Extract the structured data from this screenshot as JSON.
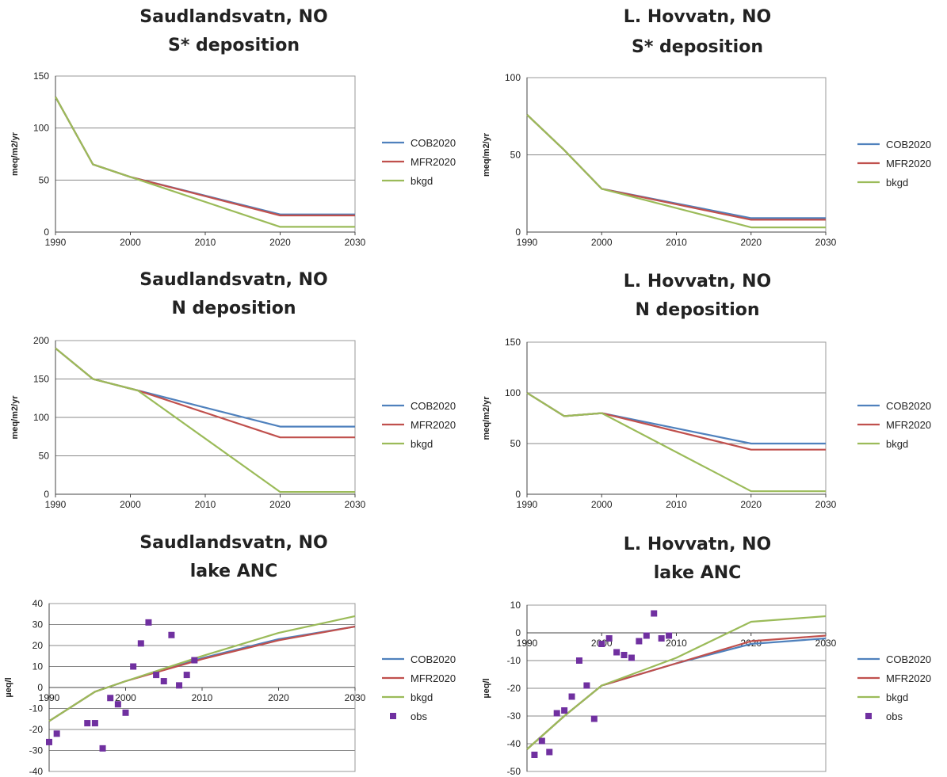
{
  "colors": {
    "COB2020": "#4f81bd",
    "MFR2020": "#c0504d",
    "bkgd": "#9bbb59",
    "obs": "#7030a0"
  },
  "chart_data": [
    {
      "type": "line",
      "title": "Saudlandsvatn, NO",
      "subtitle": "S* deposition",
      "xlabel": "",
      "ylabel": "meq/m2/yr",
      "xlim": [
        1990,
        2030
      ],
      "ylim": [
        0,
        150
      ],
      "xticks": [
        1990,
        2000,
        2010,
        2020,
        2030
      ],
      "yticks": [
        0,
        50,
        100,
        150
      ],
      "x_axis_at": 0,
      "legend": "right",
      "series": [
        {
          "name": "COB2020",
          "x": [
            1990,
            1995,
            2000,
            2020,
            2030
          ],
          "y": [
            130,
            65,
            53,
            17,
            17
          ]
        },
        {
          "name": "MFR2020",
          "x": [
            1990,
            1995,
            2000,
            2020,
            2030
          ],
          "y": [
            130,
            65,
            53,
            16,
            16
          ]
        },
        {
          "name": "bkgd",
          "x": [
            1990,
            1995,
            2000,
            2020,
            2030
          ],
          "y": [
            130,
            65,
            53,
            5,
            5
          ]
        }
      ]
    },
    {
      "type": "line",
      "title": "L. Hovvatn, NO",
      "subtitle": "S* deposition",
      "xlabel": "",
      "ylabel": "meq/m2/yr",
      "xlim": [
        1990,
        2030
      ],
      "ylim": [
        0,
        100
      ],
      "xticks": [
        1990,
        2000,
        2010,
        2020,
        2030
      ],
      "yticks": [
        0,
        50,
        100
      ],
      "x_axis_at": 0,
      "legend": "right",
      "series": [
        {
          "name": "COB2020",
          "x": [
            1990,
            1995,
            2000,
            2020,
            2030
          ],
          "y": [
            76,
            53,
            28,
            9,
            9
          ]
        },
        {
          "name": "MFR2020",
          "x": [
            1990,
            1995,
            2000,
            2020,
            2030
          ],
          "y": [
            76,
            53,
            28,
            8,
            8
          ]
        },
        {
          "name": "bkgd",
          "x": [
            1990,
            1995,
            2000,
            2020,
            2030
          ],
          "y": [
            76,
            53,
            28,
            3,
            3
          ]
        }
      ]
    },
    {
      "type": "line",
      "title": "Saudlandsvatn, NO",
      "subtitle": "N deposition",
      "xlabel": "",
      "ylabel": "meq/m2/yr",
      "xlim": [
        1990,
        2030
      ],
      "ylim": [
        0,
        200
      ],
      "xticks": [
        1990,
        2000,
        2010,
        2020,
        2030
      ],
      "yticks": [
        0,
        50,
        100,
        150,
        200
      ],
      "x_axis_at": 0,
      "legend": "right",
      "series": [
        {
          "name": "COB2020",
          "x": [
            1990,
            1995,
            2001,
            2020,
            2030
          ],
          "y": [
            190,
            150,
            135,
            88,
            88
          ]
        },
        {
          "name": "MFR2020",
          "x": [
            1990,
            1995,
            2001,
            2020,
            2030
          ],
          "y": [
            190,
            150,
            135,
            74,
            74
          ]
        },
        {
          "name": "bkgd",
          "x": [
            1990,
            1995,
            2001,
            2020,
            2030
          ],
          "y": [
            190,
            150,
            135,
            3,
            3
          ]
        }
      ]
    },
    {
      "type": "line",
      "title": "L. Hovvatn, NO",
      "subtitle": "N deposition",
      "xlabel": "",
      "ylabel": "meq/m2/yr",
      "xlim": [
        1990,
        2030
      ],
      "ylim": [
        0,
        150
      ],
      "xticks": [
        1990,
        2000,
        2010,
        2020,
        2030
      ],
      "yticks": [
        0,
        50,
        100,
        150
      ],
      "x_axis_at": 0,
      "legend": "right",
      "series": [
        {
          "name": "COB2020",
          "x": [
            1990,
            1995,
            2000,
            2020,
            2030
          ],
          "y": [
            100,
            77,
            80,
            50,
            50
          ]
        },
        {
          "name": "MFR2020",
          "x": [
            1990,
            1995,
            2000,
            2020,
            2030
          ],
          "y": [
            100,
            77,
            80,
            44,
            44
          ]
        },
        {
          "name": "bkgd",
          "x": [
            1990,
            1995,
            2000,
            2020,
            2030
          ],
          "y": [
            100,
            77,
            80,
            3,
            3
          ]
        }
      ]
    },
    {
      "type": "line",
      "title": "Saudlandsvatn, NO",
      "subtitle": "lake ANC",
      "xlabel": "",
      "ylabel": "µeq/l",
      "xlim": [
        1990,
        2030
      ],
      "ylim": [
        -40,
        40
      ],
      "xticks": [
        1990,
        2000,
        2010,
        2020,
        2030
      ],
      "yticks": [
        -40,
        -30,
        -20,
        -10,
        0,
        10,
        20,
        30,
        40
      ],
      "x_axis_at": 0,
      "legend": "right",
      "series": [
        {
          "name": "COB2020",
          "x": [
            1990,
            1996,
            2000,
            2010,
            2020,
            2030
          ],
          "y": [
            -16,
            -2,
            3,
            14,
            23,
            29
          ]
        },
        {
          "name": "MFR2020",
          "x": [
            1990,
            1996,
            2000,
            2010,
            2020,
            2030
          ],
          "y": [
            -16,
            -2,
            3,
            13.5,
            22.5,
            29
          ]
        },
        {
          "name": "bkgd",
          "x": [
            1990,
            1996,
            2000,
            2010,
            2020,
            2030
          ],
          "y": [
            -16,
            -2,
            3,
            15,
            26,
            34
          ]
        },
        {
          "name": "obs",
          "type": "scatter",
          "x": [
            1990,
            1991,
            1995,
            1996,
            1997,
            1998,
            1999,
            2000,
            2001,
            2002,
            2003,
            2004,
            2005,
            2006,
            2007,
            2008,
            2009
          ],
          "y": [
            -26,
            -22,
            -17,
            -17,
            -29,
            -5,
            -8,
            -12,
            10,
            21,
            31,
            6,
            3,
            25,
            1,
            6,
            13
          ]
        }
      ]
    },
    {
      "type": "line",
      "title": "L. Hovvatn, NO",
      "subtitle": "lake ANC",
      "xlabel": "",
      "ylabel": "µeq/l",
      "xlim": [
        1990,
        2030
      ],
      "ylim": [
        -50,
        10
      ],
      "xticks": [
        1990,
        2000,
        2010,
        2020,
        2030
      ],
      "yticks": [
        -50,
        -40,
        -30,
        -20,
        -10,
        0,
        10
      ],
      "x_axis_at": 0,
      "legend": "right",
      "series": [
        {
          "name": "COB2020",
          "x": [
            1990,
            1995,
            2000,
            2010,
            2020,
            2030
          ],
          "y": [
            -42,
            -30,
            -19,
            -11,
            -4,
            -2
          ]
        },
        {
          "name": "MFR2020",
          "x": [
            1990,
            1995,
            2000,
            2010,
            2020,
            2030
          ],
          "y": [
            -42,
            -30,
            -19,
            -11,
            -3,
            -1
          ]
        },
        {
          "name": "bkgd",
          "x": [
            1990,
            1995,
            2000,
            2010,
            2020,
            2030
          ],
          "y": [
            -42,
            -30,
            -19,
            -9,
            4,
            6
          ]
        },
        {
          "name": "obs",
          "type": "scatter",
          "x": [
            1991,
            1992,
            1993,
            1994,
            1995,
            1996,
            1997,
            1998,
            1999,
            2000,
            2001,
            2002,
            2003,
            2004,
            2005,
            2006,
            2007,
            2008,
            2009
          ],
          "y": [
            -44,
            -39,
            -43,
            -29,
            -28,
            -23,
            -10,
            -19,
            -31,
            -4,
            -2,
            -7,
            -8,
            -9,
            -3,
            -1,
            7,
            -2,
            -1
          ]
        }
      ]
    }
  ]
}
